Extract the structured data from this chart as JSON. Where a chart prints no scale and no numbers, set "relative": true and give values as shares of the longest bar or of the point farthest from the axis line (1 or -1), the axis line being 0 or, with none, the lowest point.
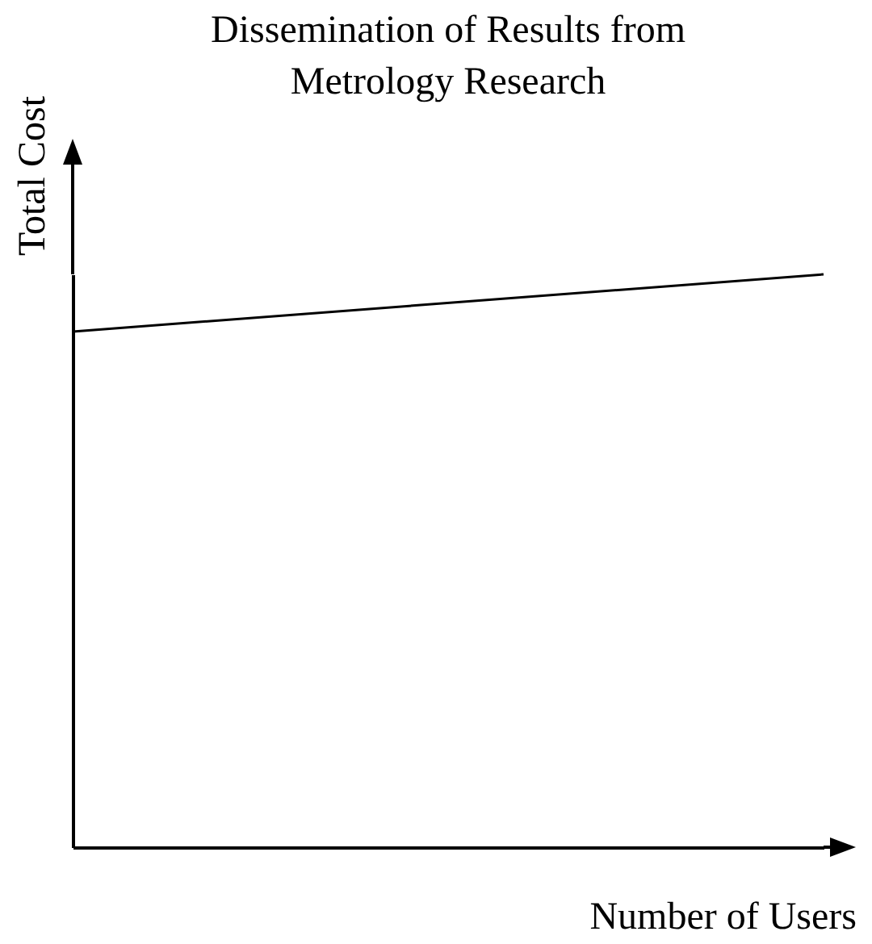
{
  "chart_data": {
    "type": "line",
    "title": "Dissemination of Results from Metrology Research",
    "xlabel": "Number of Users",
    "ylabel": "Total Cost",
    "categories": [
      null,
      null
    ],
    "series": [
      {
        "color": "#000000",
        "values": [
          0.9,
          1
        ]
      }
    ],
    "relative": true,
    "tick_labels": false
  }
}
